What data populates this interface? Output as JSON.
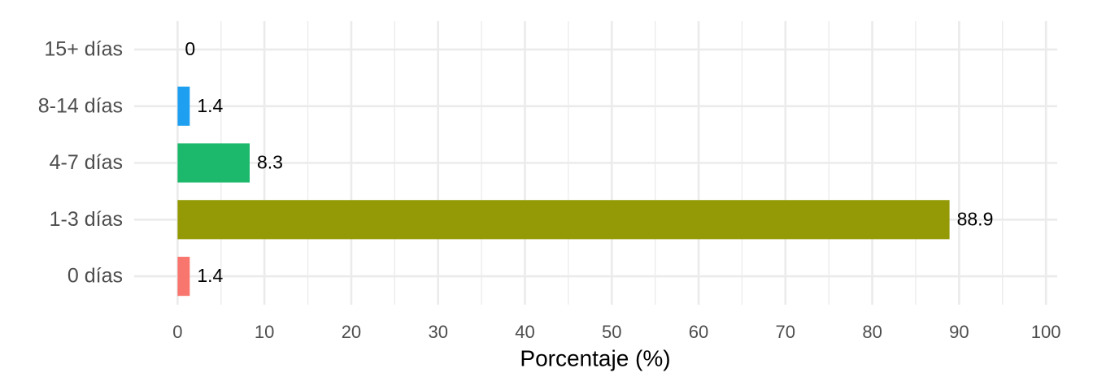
{
  "chart_data": {
    "type": "hbar",
    "x_label": "Porcentaje (%)",
    "categories": [
      "0 días",
      "1-3 días",
      "4-7 días",
      "8-14 días",
      "15+ días"
    ],
    "values": [
      1.4,
      88.9,
      8.3,
      1.4,
      0
    ],
    "colors": [
      "#F8766D",
      "#939A05",
      "#1CB86C",
      "#1F9FF0",
      "#E76BF3"
    ],
    "xlim": [
      -5,
      101.3
    ],
    "xticks": [
      0,
      10,
      20,
      30,
      40,
      50,
      60,
      70,
      80,
      90,
      100
    ],
    "xticks_minor": [
      5,
      15,
      25,
      35,
      45,
      55,
      65,
      75,
      85,
      95
    ],
    "grid": true
  }
}
